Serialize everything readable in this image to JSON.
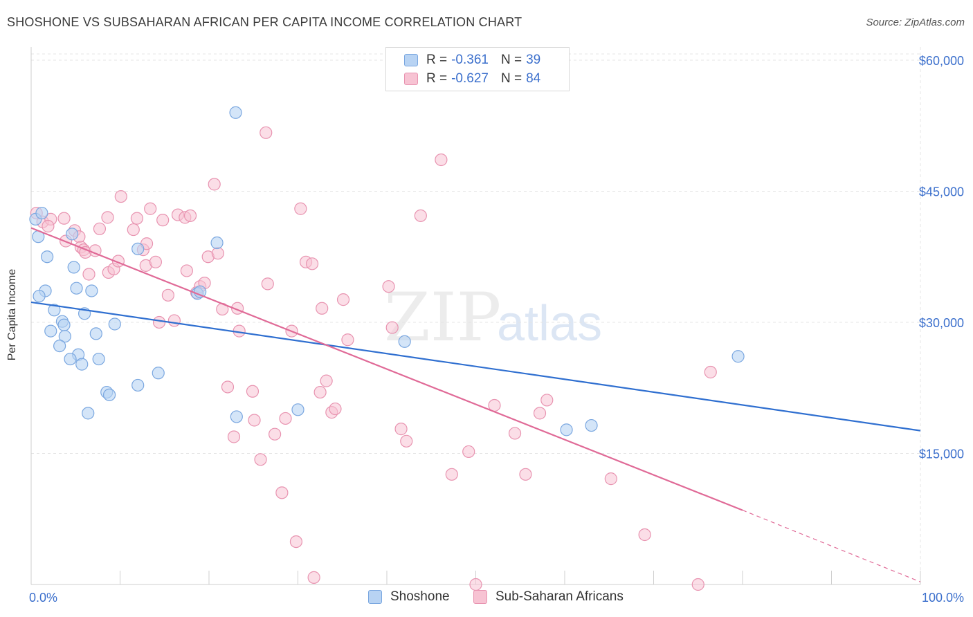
{
  "title": "SHOSHONE VS SUBSAHARAN AFRICAN PER CAPITA INCOME CORRELATION CHART",
  "source": "Source: ZipAtlas.com",
  "watermark": {
    "zip": "ZIP",
    "atlas": "atlas"
  },
  "legend_top": [
    {
      "r_label": "R =",
      "r_value": "-0.361",
      "n_label": "N =",
      "n_value": "39"
    },
    {
      "r_label": "R =",
      "r_value": "-0.627",
      "n_label": "N =",
      "n_value": "84"
    }
  ],
  "legend_bottom": [
    "Shoshone",
    "Sub-Saharan Africans"
  ],
  "colors": {
    "shoshone_fill": "#b8d3f3",
    "shoshone_stroke": "#7aa7e0",
    "shoshone_line": "#2f6fd0",
    "ssa_fill": "#f7c3d3",
    "ssa_stroke": "#e893b0",
    "ssa_line": "#e06a97",
    "tick": "#3b6fcc",
    "grid": "#e4e4e4"
  },
  "chart_data": {
    "type": "scatter",
    "title": "SHOSHONE VS SUBSAHARAN AFRICAN PER CAPITA INCOME CORRELATION CHART",
    "xlabel": "",
    "ylabel": "Per Capita Income",
    "xlim": [
      0,
      100
    ],
    "ylim": [
      0,
      61500
    ],
    "x_tick_labels": [
      "0.0%",
      "100.0%"
    ],
    "y_ticks": [
      15000,
      30000,
      45000,
      60000
    ],
    "y_tick_labels": [
      "$15,000",
      "$30,000",
      "$45,000",
      "$60,000"
    ],
    "grid": true,
    "legend_position": "top-center",
    "series": [
      {
        "name": "Shoshone",
        "r": -0.361,
        "n": 39,
        "trend": {
          "x0": 0,
          "y0": 32300,
          "x1": 100,
          "y1": 17600
        },
        "points": [
          [
            0.5,
            41800
          ],
          [
            1.2,
            42500
          ],
          [
            0.8,
            39800
          ],
          [
            1.8,
            37500
          ],
          [
            4.6,
            40100
          ],
          [
            4.8,
            36300
          ],
          [
            1.6,
            33600
          ],
          [
            0.9,
            33000
          ],
          [
            2.6,
            31400
          ],
          [
            5.1,
            33900
          ],
          [
            6.8,
            33600
          ],
          [
            3.5,
            30100
          ],
          [
            3.7,
            29700
          ],
          [
            2.2,
            29000
          ],
          [
            6.0,
            31000
          ],
          [
            7.3,
            28700
          ],
          [
            3.8,
            28400
          ],
          [
            3.2,
            27300
          ],
          [
            5.3,
            26300
          ],
          [
            4.4,
            25800
          ],
          [
            7.6,
            25800
          ],
          [
            5.7,
            25200
          ],
          [
            9.4,
            29800
          ],
          [
            12.0,
            38400
          ],
          [
            14.3,
            24200
          ],
          [
            8.5,
            22000
          ],
          [
            8.8,
            21700
          ],
          [
            12.0,
            22800
          ],
          [
            6.4,
            19600
          ],
          [
            18.7,
            33300
          ],
          [
            19.0,
            33500
          ],
          [
            20.9,
            39100
          ],
          [
            23.0,
            54000
          ],
          [
            23.1,
            19200
          ],
          [
            30.0,
            20000
          ],
          [
            42.0,
            27800
          ],
          [
            79.5,
            26100
          ],
          [
            60.2,
            17700
          ],
          [
            63.0,
            18200
          ]
        ]
      },
      {
        "name": "Sub-Saharan Africans",
        "r": -0.627,
        "n": 84,
        "trend": {
          "x0": 0,
          "y0": 40800,
          "x1": 80,
          "y1": 8500
        },
        "trend_dashed": {
          "x0": 80,
          "y0": 8500,
          "x1": 100,
          "y1": 300
        },
        "points": [
          [
            0.6,
            42500
          ],
          [
            1.3,
            41500
          ],
          [
            2.2,
            41800
          ],
          [
            1.9,
            41000
          ],
          [
            3.7,
            41900
          ],
          [
            3.9,
            39300
          ],
          [
            4.9,
            40500
          ],
          [
            5.4,
            39800
          ],
          [
            5.6,
            38600
          ],
          [
            5.9,
            38300
          ],
          [
            6.1,
            38000
          ],
          [
            7.2,
            38200
          ],
          [
            6.5,
            35500
          ],
          [
            7.7,
            40700
          ],
          [
            8.6,
            42000
          ],
          [
            8.7,
            35700
          ],
          [
            9.3,
            36100
          ],
          [
            9.8,
            37000
          ],
          [
            10.1,
            44400
          ],
          [
            11.5,
            40600
          ],
          [
            11.9,
            41900
          ],
          [
            12.6,
            38300
          ],
          [
            12.9,
            36500
          ],
          [
            13.0,
            39000
          ],
          [
            13.4,
            43000
          ],
          [
            14.0,
            36900
          ],
          [
            14.4,
            30000
          ],
          [
            14.8,
            41700
          ],
          [
            15.4,
            33100
          ],
          [
            16.1,
            30200
          ],
          [
            16.5,
            42300
          ],
          [
            17.3,
            42000
          ],
          [
            17.5,
            35900
          ],
          [
            17.9,
            42200
          ],
          [
            18.6,
            33400
          ],
          [
            19.0,
            34100
          ],
          [
            19.5,
            34500
          ],
          [
            19.9,
            37500
          ],
          [
            20.6,
            45800
          ],
          [
            21.0,
            37900
          ],
          [
            21.5,
            31500
          ],
          [
            22.1,
            22600
          ],
          [
            22.8,
            16900
          ],
          [
            23.2,
            31600
          ],
          [
            23.4,
            29000
          ],
          [
            24.9,
            22100
          ],
          [
            25.1,
            18800
          ],
          [
            25.8,
            14300
          ],
          [
            26.4,
            51700
          ],
          [
            26.6,
            34400
          ],
          [
            27.4,
            17200
          ],
          [
            28.2,
            10500
          ],
          [
            28.6,
            19000
          ],
          [
            29.3,
            29000
          ],
          [
            29.8,
            4900
          ],
          [
            30.3,
            43000
          ],
          [
            30.9,
            36900
          ],
          [
            31.6,
            36700
          ],
          [
            31.8,
            800
          ],
          [
            32.5,
            22000
          ],
          [
            32.7,
            31600
          ],
          [
            33.2,
            23300
          ],
          [
            33.8,
            19700
          ],
          [
            34.2,
            20100
          ],
          [
            35.1,
            32600
          ],
          [
            35.6,
            28000
          ],
          [
            40.2,
            34100
          ],
          [
            40.6,
            29400
          ],
          [
            41.6,
            17800
          ],
          [
            42.2,
            16400
          ],
          [
            43.8,
            42200
          ],
          [
            46.1,
            48600
          ],
          [
            47.3,
            12600
          ],
          [
            49.2,
            15200
          ],
          [
            52.1,
            20500
          ],
          [
            54.4,
            17300
          ],
          [
            55.6,
            12600
          ],
          [
            57.2,
            19600
          ],
          [
            58.0,
            21100
          ],
          [
            65.2,
            12100
          ],
          [
            69.0,
            5700
          ],
          [
            76.4,
            24300
          ],
          [
            50.0,
            0
          ],
          [
            75.0,
            0
          ]
        ]
      }
    ]
  }
}
